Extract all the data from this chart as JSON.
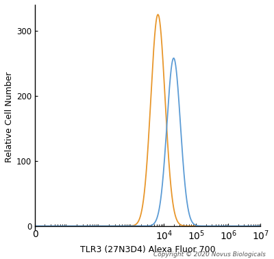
{
  "xlabel": "TLR3 (27N3D4) Alexa Fluor 700",
  "ylabel": "Relative Cell Number",
  "copyright": "Copyright © 2020 Novus Biologicals",
  "xlim": [
    1,
    10000000.0
  ],
  "ylim": [
    -5,
    340
  ],
  "yticks": [
    0,
    100,
    200,
    300
  ],
  "background_color": "#ffffff",
  "orange_curve": {
    "color": "#E8962A",
    "peak_x": 6500,
    "peak_y": 325,
    "sigma": 0.22
  },
  "blue_curve": {
    "color": "#5B9BD5",
    "peak_x": 20000,
    "peak_y": 258,
    "sigma": 0.21
  },
  "xtick_positions": [
    1,
    10000.0,
    100000.0,
    1000000.0,
    10000000.0
  ],
  "xtick_labels": [
    "0",
    "$10^4$",
    "$10^5$",
    "$10^6$",
    "$10^7$"
  ],
  "xlabel_fontsize": 9,
  "ylabel_fontsize": 9,
  "tick_fontsize": 8.5,
  "copyright_fontsize": 6.5
}
